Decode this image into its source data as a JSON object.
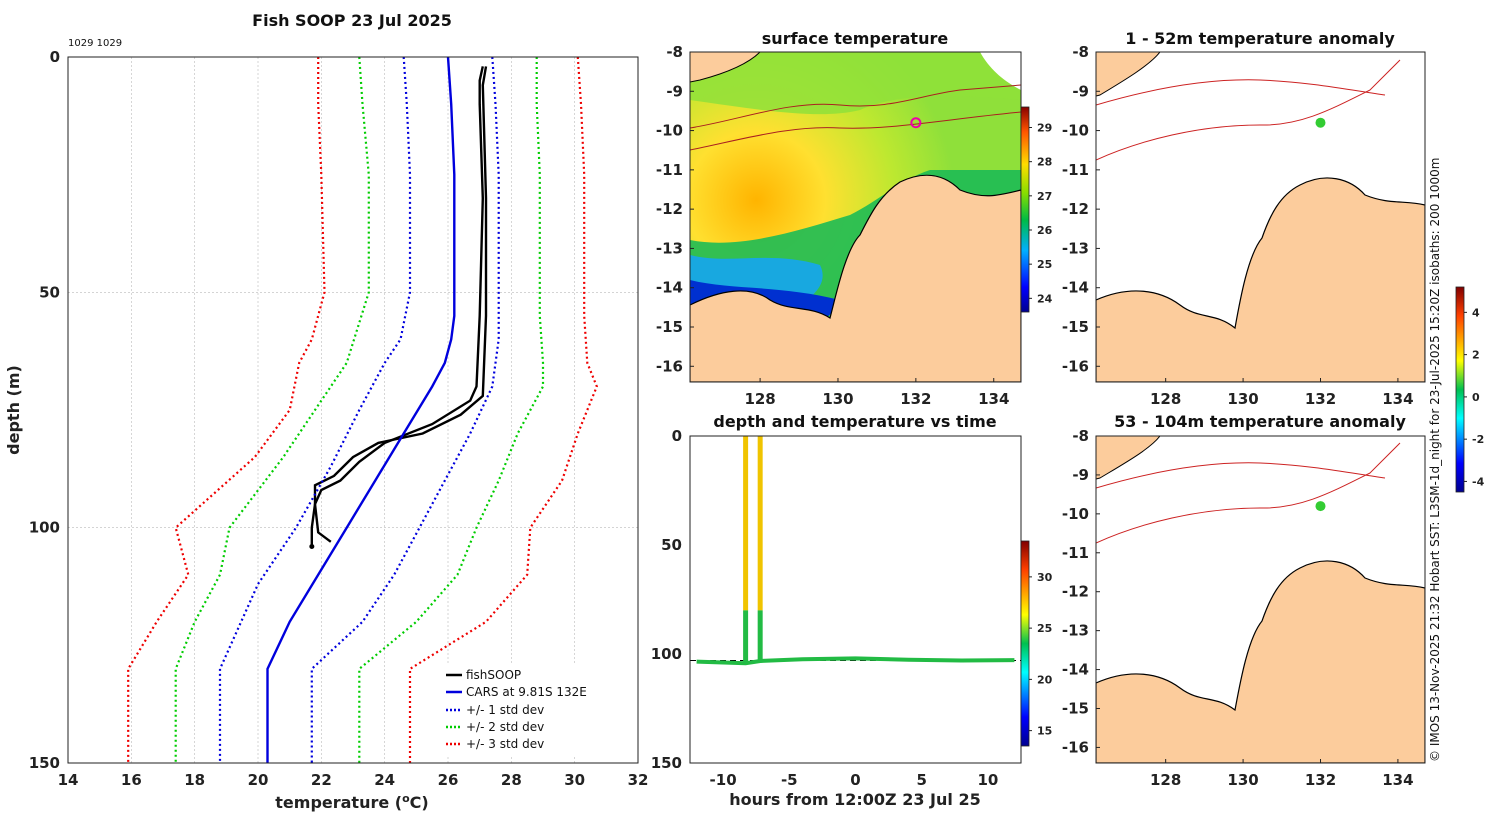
{
  "chart_data": [
    {
      "type": "line",
      "title": "Fish SOOP 23 Jul 2025",
      "subtitle": "1029 1029",
      "xlabel": "temperature (",
      "xlabel_unit": "o",
      "xlabel_suffix": "C)",
      "ylabel": "depth (m)",
      "xlim": [
        14,
        32
      ],
      "ylim": [
        0,
        150
      ],
      "x_ticks": [
        14,
        16,
        18,
        20,
        22,
        24,
        26,
        28,
        30,
        32
      ],
      "y_ticks": [
        0,
        50,
        100,
        150
      ],
      "y_reversed": true,
      "series": [
        {
          "name": "fishSOOP",
          "color": "#000000",
          "style": "solid",
          "points": [
            [
              27.1,
              2
            ],
            [
              27.0,
              5
            ],
            [
              27.0,
              10
            ],
            [
              27.1,
              30
            ],
            [
              27.0,
              55
            ],
            [
              26.9,
              70
            ],
            [
              26.7,
              73
            ],
            [
              25.5,
              78
            ],
            [
              24.0,
              82
            ],
            [
              23.2,
              86
            ],
            [
              22.6,
              90
            ],
            [
              22.0,
              92
            ],
            [
              21.8,
              95
            ],
            [
              21.7,
              100
            ],
            [
              21.7,
              104
            ]
          ]
        },
        {
          "name": "fishSOOP cast 2",
          "legend": false,
          "color": "#000000",
          "style": "solid",
          "points": [
            [
              27.2,
              2
            ],
            [
              27.1,
              6
            ],
            [
              27.2,
              30
            ],
            [
              27.2,
              55
            ],
            [
              27.1,
              72
            ],
            [
              26.4,
              76
            ],
            [
              25.2,
              80
            ],
            [
              23.8,
              82
            ],
            [
              23.0,
              85
            ],
            [
              22.4,
              89
            ],
            [
              21.8,
              91
            ],
            [
              21.8,
              95
            ],
            [
              21.9,
              101
            ],
            [
              22.3,
              103
            ]
          ]
        },
        {
          "name": "CARS at 9.81S 132E",
          "color": "#0000dd",
          "style": "solid",
          "points": [
            [
              26.0,
              0
            ],
            [
              26.1,
              10
            ],
            [
              26.2,
              25
            ],
            [
              26.2,
              55
            ],
            [
              26.1,
              60
            ],
            [
              25.9,
              65
            ],
            [
              25.5,
              70
            ],
            [
              24.6,
              80
            ],
            [
              23.7,
              90
            ],
            [
              22.8,
              100
            ],
            [
              21.9,
              110
            ],
            [
              21.0,
              120
            ],
            [
              20.3,
              130
            ],
            [
              20.3,
              150
            ]
          ]
        },
        {
          "name": "+/- 1 std dev",
          "color": "#0000dd",
          "style": "dotted",
          "points": [
            [
              24.6,
              0
            ],
            [
              24.7,
              10
            ],
            [
              24.8,
              25
            ],
            [
              24.8,
              50
            ],
            [
              24.5,
              60
            ],
            [
              24.0,
              65
            ],
            [
              23.2,
              75
            ],
            [
              22.3,
              87
            ],
            [
              21.2,
              100
            ],
            [
              20.0,
              112
            ],
            [
              18.8,
              130
            ],
            [
              18.8,
              150
            ]
          ]
        },
        {
          "name": "+/- 1 std dev upper",
          "legend": false,
          "color": "#0000dd",
          "style": "dotted",
          "points": [
            [
              27.4,
              0
            ],
            [
              27.5,
              10
            ],
            [
              27.6,
              25
            ],
            [
              27.6,
              55
            ],
            [
              27.6,
              60
            ],
            [
              27.4,
              70
            ],
            [
              26.7,
              80
            ],
            [
              25.9,
              90
            ],
            [
              25.1,
              100
            ],
            [
              24.3,
              110
            ],
            [
              23.3,
              120
            ],
            [
              21.7,
              130
            ],
            [
              21.7,
              150
            ]
          ]
        },
        {
          "name": "+/- 2 std dev",
          "color": "#00cc00",
          "style": "dotted",
          "points": [
            [
              23.2,
              0
            ],
            [
              23.3,
              10
            ],
            [
              23.5,
              25
            ],
            [
              23.5,
              50
            ],
            [
              22.8,
              65
            ],
            [
              21.8,
              75
            ],
            [
              20.8,
              85
            ],
            [
              19.1,
              100
            ],
            [
              18.8,
              110
            ],
            [
              18.0,
              120
            ],
            [
              17.4,
              130
            ],
            [
              17.4,
              150
            ]
          ]
        },
        {
          "name": "+/- 2 std dev upper",
          "legend": false,
          "color": "#00cc00",
          "style": "dotted",
          "points": [
            [
              28.8,
              0
            ],
            [
              28.8,
              10
            ],
            [
              28.9,
              25
            ],
            [
              28.9,
              55
            ],
            [
              29.0,
              65
            ],
            [
              29.0,
              70
            ],
            [
              28.2,
              80
            ],
            [
              27.6,
              90
            ],
            [
              26.9,
              100
            ],
            [
              26.3,
              110
            ],
            [
              25.0,
              120
            ],
            [
              23.2,
              130
            ],
            [
              23.2,
              150
            ]
          ]
        },
        {
          "name": "+/- 3 std dev",
          "color": "#ee0000",
          "style": "dotted",
          "points": [
            [
              21.9,
              0
            ],
            [
              21.9,
              10
            ],
            [
              22.0,
              25
            ],
            [
              22.1,
              50
            ],
            [
              21.7,
              60
            ],
            [
              21.3,
              65
            ],
            [
              21.0,
              75
            ],
            [
              19.9,
              85
            ],
            [
              17.4,
              100
            ],
            [
              17.8,
              110
            ],
            [
              16.8,
              120
            ],
            [
              15.9,
              130
            ],
            [
              15.9,
              150
            ]
          ]
        },
        {
          "name": "+/- 3 std dev upper",
          "legend": false,
          "color": "#ee0000",
          "style": "dotted",
          "points": [
            [
              30.1,
              0
            ],
            [
              30.2,
              10
            ],
            [
              30.3,
              25
            ],
            [
              30.3,
              55
            ],
            [
              30.4,
              65
            ],
            [
              30.7,
              70
            ],
            [
              30.1,
              80
            ],
            [
              29.6,
              90
            ],
            [
              28.6,
              100
            ],
            [
              28.5,
              110
            ],
            [
              27.2,
              120
            ],
            [
              24.8,
              130
            ],
            [
              24.8,
              150
            ]
          ]
        }
      ],
      "legend": [
        "fishSOOP",
        "CARS at 9.81S 132E",
        "+/- 1 std dev",
        "+/- 2 std dev",
        "+/- 3 std dev"
      ]
    },
    {
      "type": "heatmap",
      "title": "surface temperature",
      "x_ticks": [
        128,
        130,
        132,
        134
      ],
      "y_ticks": [
        -8,
        -9,
        -10,
        -11,
        -12,
        -13,
        -14,
        -15,
        -16
      ],
      "xlim": [
        126.2,
        134.7
      ],
      "ylim": [
        -16.4,
        -8
      ],
      "colorbar_ticks": [
        24,
        25,
        26,
        27,
        28,
        29
      ],
      "colorbar_range": [
        23.6,
        29.6
      ],
      "marker": {
        "lon": 132,
        "lat": -9.8
      }
    },
    {
      "type": "scatter",
      "title": "depth and temperature vs time",
      "xlabel": "hours from 12:00Z 23 Jul 25",
      "xlim": [
        -12.5,
        12.5
      ],
      "ylim": [
        0,
        150
      ],
      "x_ticks": [
        -10,
        -5,
        0,
        5,
        10
      ],
      "y_ticks": [
        0,
        50,
        100,
        150
      ],
      "y_reversed": true,
      "colorbar_ticks": [
        15,
        20,
        25,
        30
      ],
      "colorbar_range": [
        13.5,
        33.5
      ],
      "bottom_depth": 103,
      "casts": [
        {
          "hour": -8.3,
          "top_depth": 0,
          "bottom_depth": 104,
          "warm_until": 80
        },
        {
          "hour": -7.2,
          "top_depth": 0,
          "bottom_depth": 103,
          "warm_until": 80
        }
      ],
      "bottom_track": [
        [
          -12.0,
          103.5
        ],
        [
          -8.3,
          104.2
        ],
        [
          -7.2,
          103.2
        ],
        [
          -4,
          102.4
        ],
        [
          0,
          102.0
        ],
        [
          4,
          102.6
        ],
        [
          8,
          103.0
        ],
        [
          12,
          102.8
        ]
      ]
    },
    {
      "type": "heatmap",
      "title": "1 - 52m temperature anomaly",
      "x_ticks": [
        128,
        130,
        132,
        134
      ],
      "y_ticks": [
        -8,
        -9,
        -10,
        -11,
        -12,
        -13,
        -14,
        -15,
        -16
      ],
      "marker": {
        "lon": 132,
        "lat": -9.8
      }
    },
    {
      "type": "heatmap",
      "title": "53 - 104m temperature anomaly",
      "x_ticks": [
        128,
        130,
        132,
        134
      ],
      "y_ticks": [
        -8,
        -9,
        -10,
        -11,
        -12,
        -13,
        -14,
        -15,
        -16
      ],
      "marker": {
        "lon": 132,
        "lat": -9.8
      },
      "colorbar_ticks": [
        -4,
        -2,
        0,
        2,
        4
      ],
      "colorbar_range": [
        -4.5,
        5.2
      ]
    }
  ],
  "credit": "© IMOS 13-Nov-2025 21:32 Hobart SST: L3SM-1d_night for 23-Jul-2025 15:20Z isobaths: 200  1000m",
  "colors": {
    "land": "#fccc9c",
    "sea_anomaly": "#ffffff",
    "isobath": "#cc2222",
    "marker": "#ee00aa"
  }
}
